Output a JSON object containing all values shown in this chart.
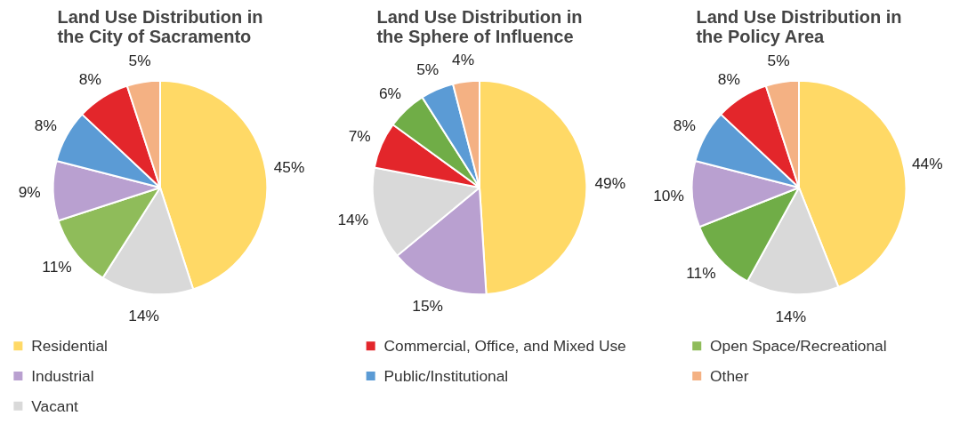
{
  "chart_data": [
    {
      "type": "pie",
      "title": "Land Use Distribution in\nthe City of Sacramento",
      "categories": [
        "Residential",
        "Vacant",
        "Open Space/Recreational",
        "Industrial",
        "Public/Institutional",
        "Commercial, Office, and Mixed Use",
        "Other"
      ],
      "values": [
        45,
        14,
        11,
        9,
        8,
        8,
        5
      ],
      "value_labels": [
        "45%",
        "14%",
        "11%",
        "9%",
        "8%",
        "8%",
        "5%"
      ],
      "colors": [
        "#ffd966",
        "#d9d9d9",
        "#8fbc5a",
        "#b9a0d0",
        "#5b9bd5",
        "#e3262b",
        "#f4b183"
      ],
      "legend": "bottom"
    },
    {
      "type": "pie",
      "title": "Land Use Distribution in\nthe Sphere of Influence",
      "categories": [
        null,
        null,
        null,
        null,
        null,
        null,
        null
      ],
      "values": [
        49,
        15,
        14,
        7,
        6,
        5,
        4
      ],
      "value_labels": [
        "49%",
        "15%",
        "14%",
        "7%",
        "6%",
        "5%",
        "4%"
      ],
      "colors": [
        "#ffd966",
        "#b9a0d0",
        "#d9d9d9",
        "#e3262b",
        "#70ad47",
        "#5b9bd5",
        "#f4b183"
      ]
    },
    {
      "type": "pie",
      "title": "Land Use Distribution in\nthe Policy Area",
      "categories": [
        null,
        null,
        null,
        null,
        null,
        null,
        null
      ],
      "values": [
        44,
        14,
        11,
        10,
        8,
        8,
        5
      ],
      "value_labels": [
        "44%",
        "14%",
        "11%",
        "10%",
        "8%",
        "8%",
        "5%"
      ],
      "colors": [
        "#ffd966",
        "#d9d9d9",
        "#70ad47",
        "#b9a0d0",
        "#5b9bd5",
        "#e3262b",
        "#f4b183"
      ]
    }
  ]
}
